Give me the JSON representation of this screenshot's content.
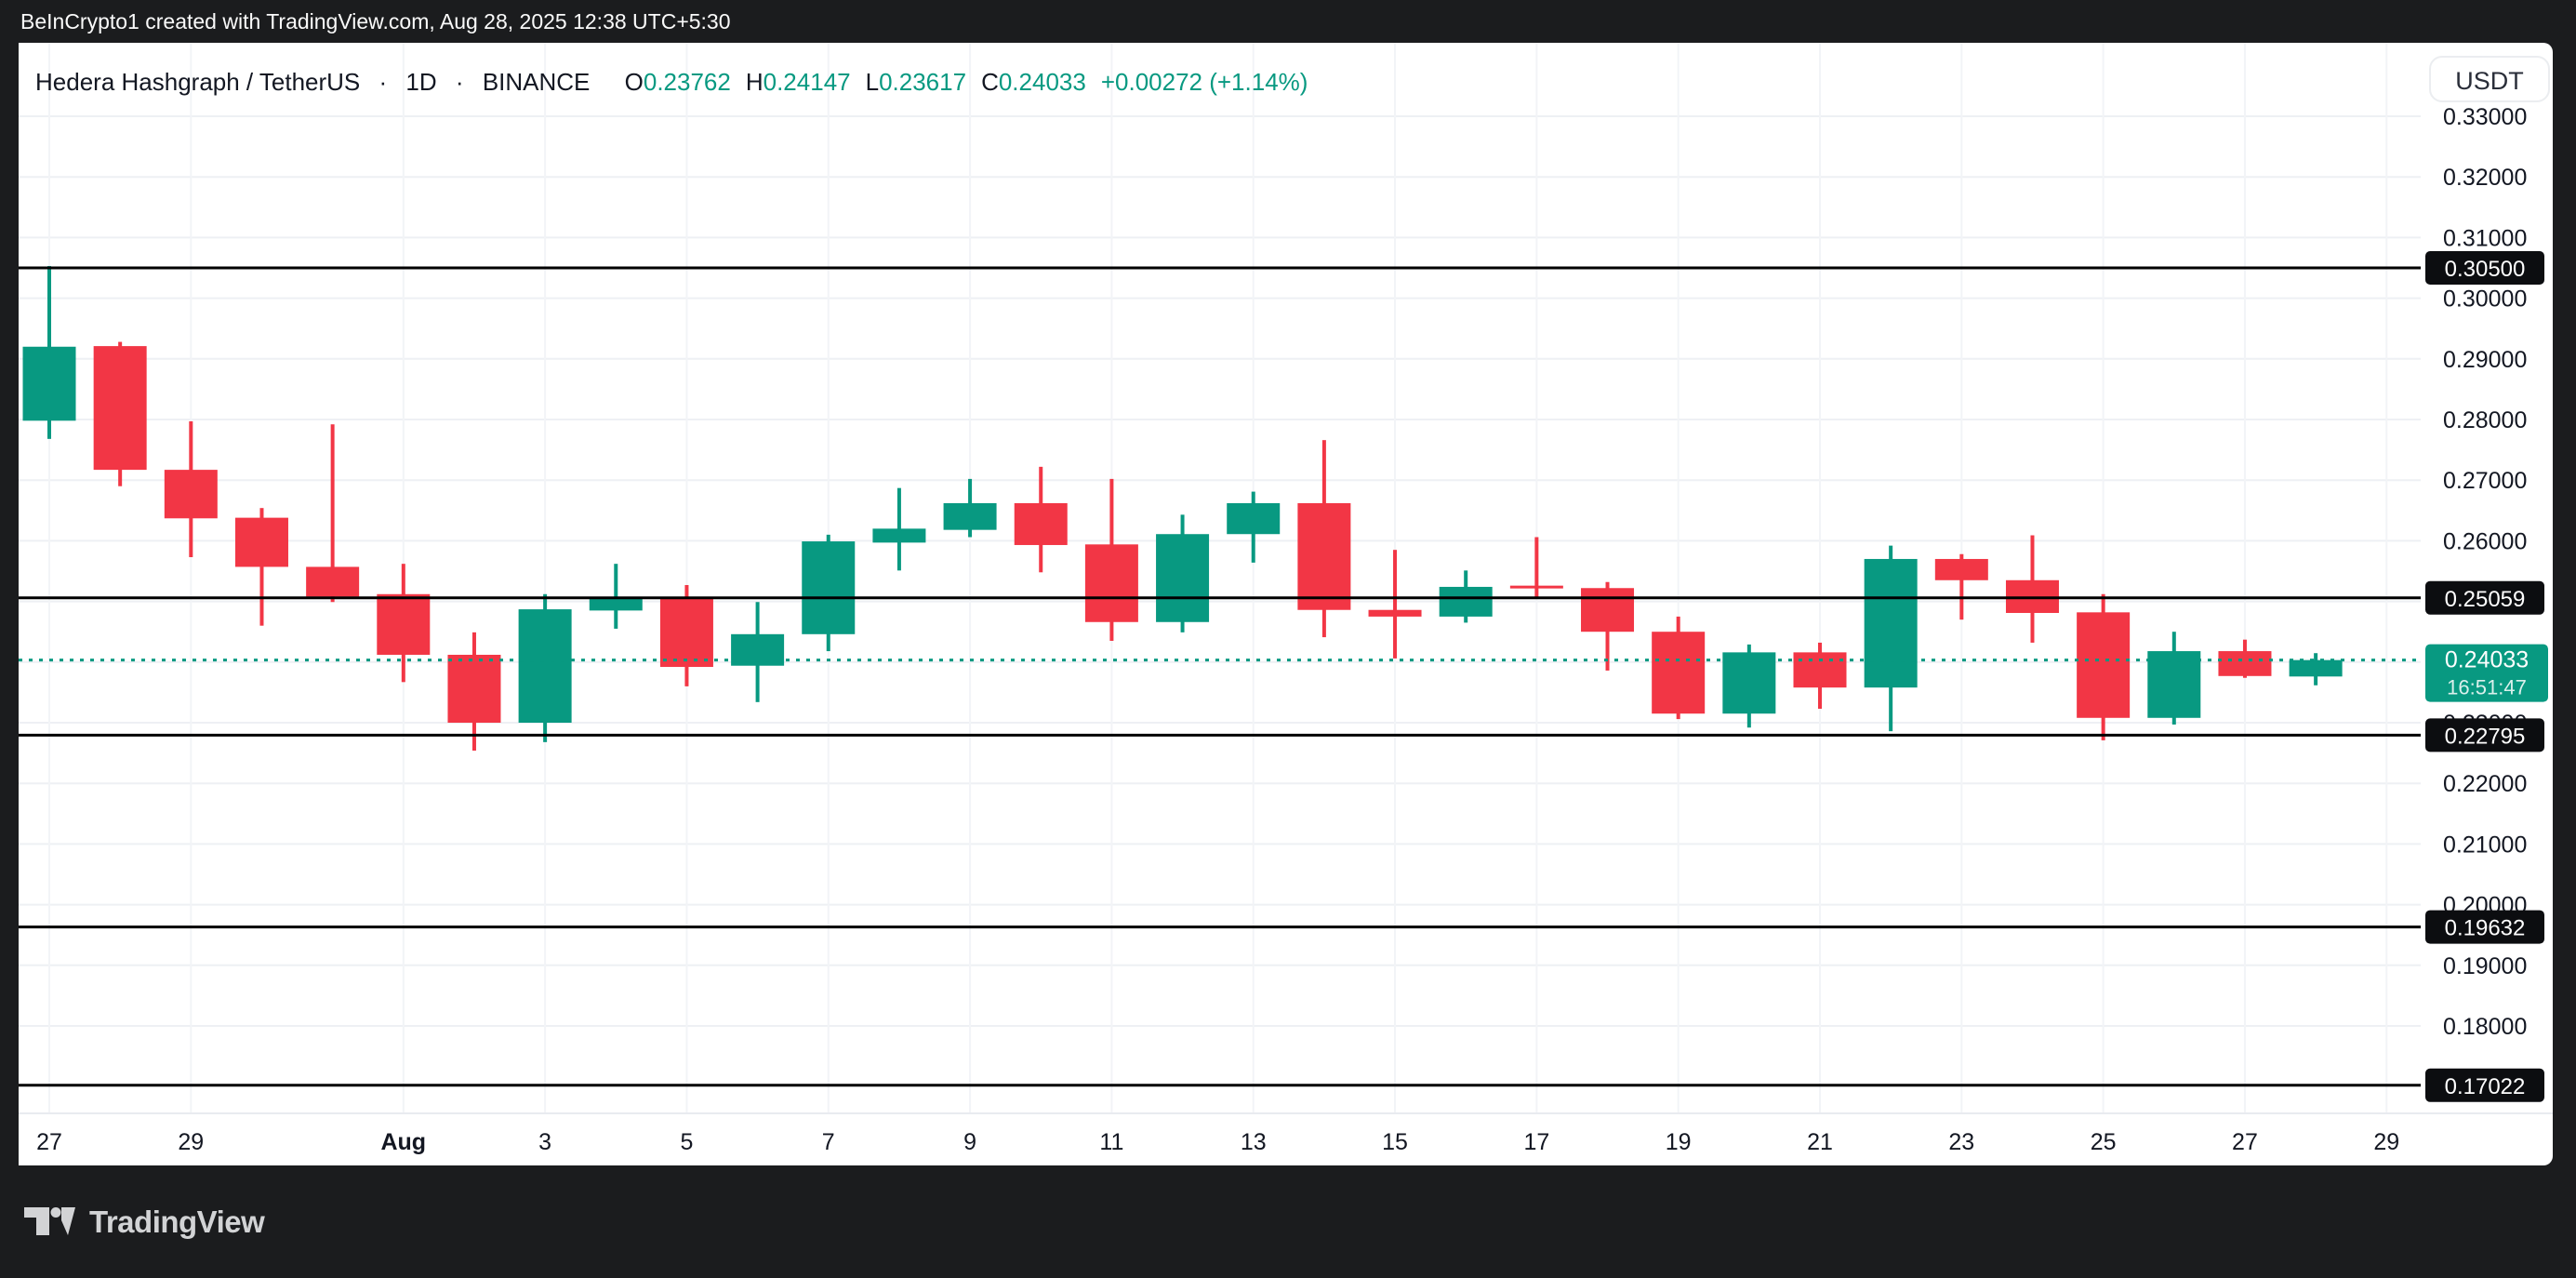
{
  "top_bar": {
    "attribution": "BeInCrypto1 created with TradingView.com, Aug 28, 2025 12:38 UTC+5:30"
  },
  "header": {
    "symbol": "Hedera Hashgraph / TetherUS",
    "separator": "·",
    "interval": "1D",
    "exchange": "BINANCE",
    "ohlc_fields": [
      {
        "label": "O",
        "value": "0.23762"
      },
      {
        "label": "H",
        "value": "0.24147"
      },
      {
        "label": "L",
        "value": "0.23617"
      },
      {
        "label": "C",
        "value": "0.24033"
      }
    ],
    "change_text": "+0.00272 (+1.14%)"
  },
  "price_axis": {
    "currency_label": "USDT",
    "tick_labels": [
      "0.33000",
      "0.32000",
      "0.31000",
      "0.30000",
      "0.29000",
      "0.28000",
      "0.27000",
      "0.26000",
      "0.25000",
      "0.24000",
      "0.23000",
      "0.22000",
      "0.21000",
      "0.20000",
      "0.19000",
      "0.18000",
      "0.17000"
    ],
    "level_badges": [
      {
        "value": 0.305,
        "label": "0.30500"
      },
      {
        "value": 0.25059,
        "label": "0.25059"
      },
      {
        "value": 0.22795,
        "label": "0.22795"
      },
      {
        "value": 0.19632,
        "label": "0.19632"
      },
      {
        "value": 0.17022,
        "label": "0.17022"
      }
    ],
    "current_price_badge": {
      "value": 0.24033,
      "label": "0.24033",
      "countdown": "16:51:47"
    }
  },
  "time_axis": {
    "ticks": [
      {
        "label": "27",
        "i": 0
      },
      {
        "label": "29",
        "i": 2
      },
      {
        "label": "Aug",
        "i": 5,
        "bold": true
      },
      {
        "label": "3",
        "i": 7
      },
      {
        "label": "5",
        "i": 9
      },
      {
        "label": "7",
        "i": 11
      },
      {
        "label": "9",
        "i": 13
      },
      {
        "label": "11",
        "i": 15
      },
      {
        "label": "13",
        "i": 17
      },
      {
        "label": "15",
        "i": 19
      },
      {
        "label": "17",
        "i": 21
      },
      {
        "label": "19",
        "i": 23
      },
      {
        "label": "21",
        "i": 25
      },
      {
        "label": "23",
        "i": 27
      },
      {
        "label": "25",
        "i": 29
      },
      {
        "label": "27",
        "i": 31
      },
      {
        "label": "29",
        "i": 33
      }
    ]
  },
  "chart_data": {
    "type": "candlestick",
    "symbol": "Hedera Hashgraph / TetherUS",
    "exchange": "BINANCE",
    "timeframe": "1D",
    "ylim": [
      0.17,
      0.33
    ],
    "ytick_step": 0.01,
    "grid": true,
    "horizontal_lines": [
      0.305,
      0.25059,
      0.22795,
      0.19632,
      0.17022
    ],
    "current_price": 0.24033,
    "candles": [
      {
        "date": "Jul 27",
        "o": 0.2798,
        "h": 0.3053,
        "l": 0.2768,
        "c": 0.292
      },
      {
        "date": "Jul 28",
        "o": 0.2921,
        "h": 0.2928,
        "l": 0.269,
        "c": 0.2717
      },
      {
        "date": "Jul 29",
        "o": 0.2717,
        "h": 0.2797,
        "l": 0.2573,
        "c": 0.2637
      },
      {
        "date": "Jul 30",
        "o": 0.2638,
        "h": 0.2654,
        "l": 0.246,
        "c": 0.2557
      },
      {
        "date": "Jul 31",
        "o": 0.2557,
        "h": 0.2792,
        "l": 0.2499,
        "c": 0.2508
      },
      {
        "date": "Aug 1",
        "o": 0.2512,
        "h": 0.2562,
        "l": 0.2367,
        "c": 0.2412
      },
      {
        "date": "Aug 2",
        "o": 0.2412,
        "h": 0.2449,
        "l": 0.2254,
        "c": 0.23
      },
      {
        "date": "Aug 3",
        "o": 0.23,
        "h": 0.2512,
        "l": 0.2268,
        "c": 0.2487
      },
      {
        "date": "Aug 4",
        "o": 0.2485,
        "h": 0.2562,
        "l": 0.2455,
        "c": 0.2505
      },
      {
        "date": "Aug 5",
        "o": 0.2506,
        "h": 0.2527,
        "l": 0.236,
        "c": 0.2392
      },
      {
        "date": "Aug 6",
        "o": 0.2394,
        "h": 0.2499,
        "l": 0.2334,
        "c": 0.2446
      },
      {
        "date": "Aug 7",
        "o": 0.2446,
        "h": 0.261,
        "l": 0.2418,
        "c": 0.2599
      },
      {
        "date": "Aug 8",
        "o": 0.2597,
        "h": 0.2687,
        "l": 0.2551,
        "c": 0.262
      },
      {
        "date": "Aug 9",
        "o": 0.2618,
        "h": 0.2702,
        "l": 0.2606,
        "c": 0.2662
      },
      {
        "date": "Aug 10",
        "o": 0.2662,
        "h": 0.2722,
        "l": 0.2548,
        "c": 0.2593
      },
      {
        "date": "Aug 11",
        "o": 0.2594,
        "h": 0.2702,
        "l": 0.2435,
        "c": 0.2466
      },
      {
        "date": "Aug 12",
        "o": 0.2466,
        "h": 0.2643,
        "l": 0.2449,
        "c": 0.2611
      },
      {
        "date": "Aug 13",
        "o": 0.2611,
        "h": 0.2681,
        "l": 0.2564,
        "c": 0.2662
      },
      {
        "date": "Aug 14",
        "o": 0.2662,
        "h": 0.2766,
        "l": 0.2441,
        "c": 0.2486
      },
      {
        "date": "Aug 15",
        "o": 0.2486,
        "h": 0.2585,
        "l": 0.2406,
        "c": 0.2475
      },
      {
        "date": "Aug 16",
        "o": 0.2475,
        "h": 0.2551,
        "l": 0.2465,
        "c": 0.2524
      },
      {
        "date": "Aug 17",
        "o": 0.2526,
        "h": 0.2606,
        "l": 0.2504,
        "c": 0.2522
      },
      {
        "date": "Aug 18",
        "o": 0.2522,
        "h": 0.2532,
        "l": 0.2386,
        "c": 0.245
      },
      {
        "date": "Aug 19",
        "o": 0.245,
        "h": 0.2475,
        "l": 0.2306,
        "c": 0.2315
      },
      {
        "date": "Aug 20",
        "o": 0.2315,
        "h": 0.2429,
        "l": 0.2292,
        "c": 0.2416
      },
      {
        "date": "Aug 21",
        "o": 0.2416,
        "h": 0.2432,
        "l": 0.2323,
        "c": 0.2358
      },
      {
        "date": "Aug 22",
        "o": 0.2358,
        "h": 0.2592,
        "l": 0.2286,
        "c": 0.257
      },
      {
        "date": "Aug 23",
        "o": 0.257,
        "h": 0.2578,
        "l": 0.247,
        "c": 0.2535
      },
      {
        "date": "Aug 24",
        "o": 0.2535,
        "h": 0.2609,
        "l": 0.2432,
        "c": 0.2481
      },
      {
        "date": "Aug 25",
        "o": 0.2482,
        "h": 0.2512,
        "l": 0.2271,
        "c": 0.2308
      },
      {
        "date": "Aug 26",
        "o": 0.2308,
        "h": 0.245,
        "l": 0.2297,
        "c": 0.2418
      },
      {
        "date": "Aug 27",
        "o": 0.2418,
        "h": 0.2437,
        "l": 0.2374,
        "c": 0.2377
      },
      {
        "date": "Aug 28",
        "o": 0.23762,
        "h": 0.24147,
        "l": 0.23617,
        "c": 0.24033
      }
    ],
    "colors": {
      "up": "#089981",
      "down": "#F23645",
      "level_line": "#000000",
      "current_line": "#089981",
      "grid_h": "#eef0f4",
      "grid_v": "#f2f4f7",
      "axis_text": "#131722",
      "badge_bg": "#0c0d10",
      "badge_text": "#ffffff",
      "current_badge_bg": "#089981"
    }
  },
  "footer": {
    "brand": "TradingView"
  }
}
